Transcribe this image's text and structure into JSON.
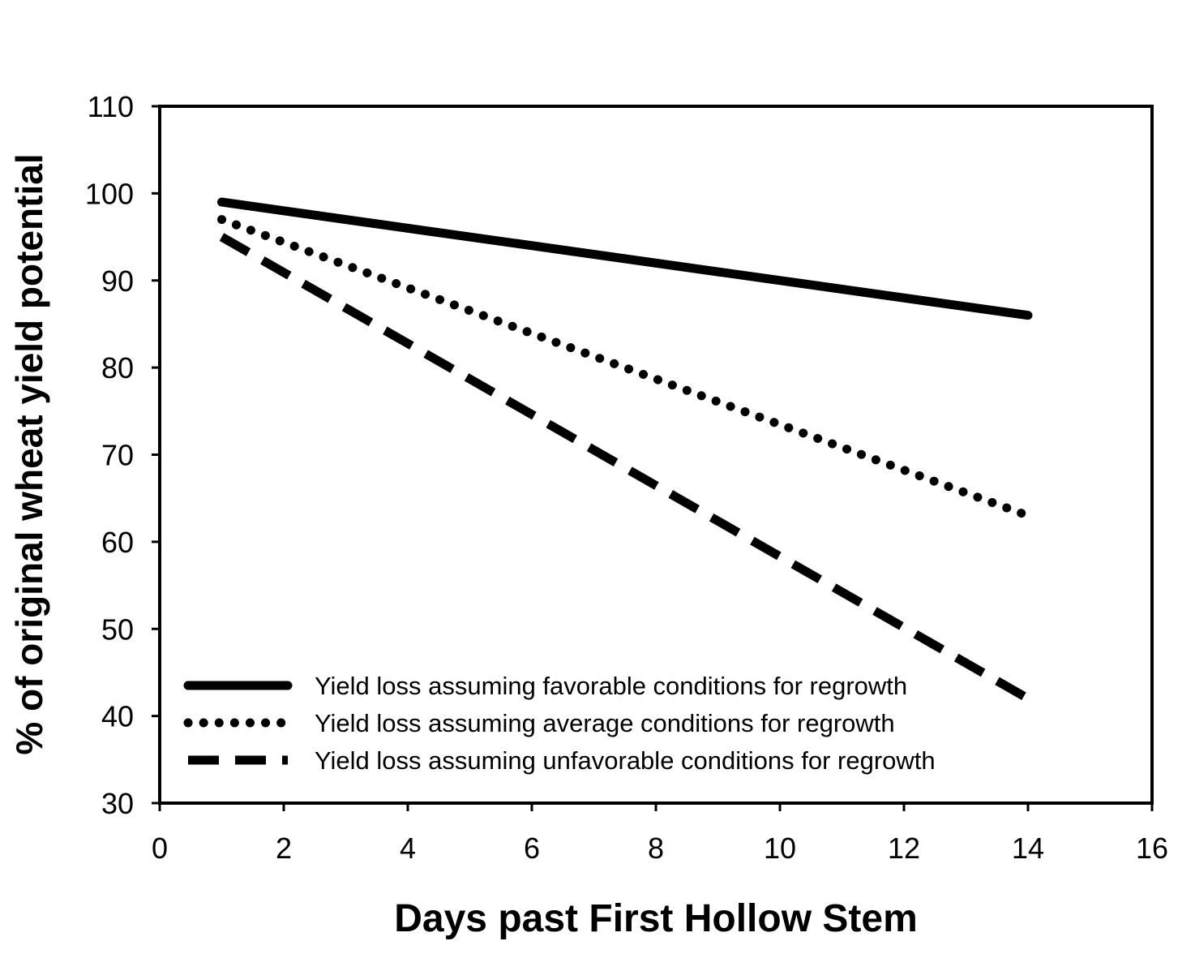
{
  "chart_data": {
    "type": "line",
    "title": "",
    "xlabel": "Days past First Hollow Stem",
    "ylabel": "% of original wheat yield potential",
    "xlim": [
      0,
      16
    ],
    "ylim": [
      30,
      110
    ],
    "xticks": [
      "0",
      "2",
      "4",
      "6",
      "8",
      "10",
      "12",
      "14",
      "16"
    ],
    "yticks": [
      "30",
      "40",
      "50",
      "60",
      "70",
      "80",
      "90",
      "100",
      "110"
    ],
    "grid": false,
    "legend_position": "bottom-left",
    "series": [
      {
        "name": "Yield loss assuming favorable conditions for regrowth",
        "style": "solid",
        "x": [
          1,
          14
        ],
        "y": [
          99,
          86
        ]
      },
      {
        "name": "Yield loss assuming average conditions for regrowth",
        "style": "dotted",
        "x": [
          1,
          14
        ],
        "y": [
          97,
          63
        ]
      },
      {
        "name": "Yield loss assuming unfavorable conditions for regrowth",
        "style": "dashed",
        "x": [
          1,
          14
        ],
        "y": [
          95,
          42
        ]
      }
    ],
    "colors": {
      "line": "#000000",
      "background": "#ffffff"
    }
  }
}
